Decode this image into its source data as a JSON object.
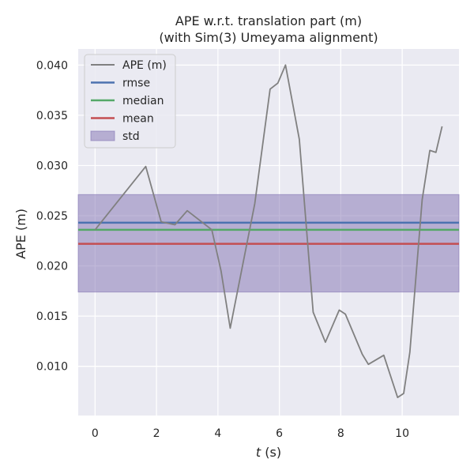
{
  "chart_data": {
    "type": "line",
    "title": "APE w.r.t. translation part (m)",
    "subtitle": "(with Sim(3) Umeyama alignment)",
    "xlabel_italic": "t",
    "xlabel_unit": " (s)",
    "ylabel": "APE (m)",
    "xlim": [
      -0.55,
      11.85
    ],
    "ylim": [
      0.0051,
      0.0416
    ],
    "xticks": [
      0,
      2,
      4,
      6,
      8,
      10
    ],
    "yticks": [
      0.01,
      0.015,
      0.02,
      0.025,
      0.03,
      0.035,
      0.04
    ],
    "ytick_labels": [
      "0.010",
      "0.015",
      "0.020",
      "0.025",
      "0.030",
      "0.035",
      "0.040"
    ],
    "grid": true,
    "legend_position": "top-left",
    "series": [
      {
        "name": "APE (m)",
        "color": "#808080",
        "x": [
          0.0,
          1.65,
          2.15,
          2.6,
          3.0,
          3.8,
          4.1,
          4.4,
          5.2,
          5.7,
          5.95,
          6.2,
          6.65,
          7.1,
          7.5,
          7.95,
          8.15,
          8.7,
          8.9,
          9.4,
          9.85,
          10.05,
          10.25,
          10.65,
          10.9,
          11.1,
          11.3
        ],
        "y": [
          0.0236,
          0.0299,
          0.0244,
          0.0241,
          0.0255,
          0.0236,
          0.0195,
          0.0138,
          0.0262,
          0.0376,
          0.0382,
          0.04,
          0.0326,
          0.0154,
          0.0124,
          0.0156,
          0.0152,
          0.0112,
          0.0102,
          0.0111,
          0.0069,
          0.0073,
          0.0114,
          0.0266,
          0.0315,
          0.0313,
          0.0339
        ]
      }
    ],
    "stats": [
      {
        "name": "rmse",
        "value": 0.0243,
        "color": "#4c72b0"
      },
      {
        "name": "median",
        "value": 0.0236,
        "color": "#55a868"
      },
      {
        "name": "mean",
        "value": 0.0222,
        "color": "#c44e52"
      }
    ],
    "std_band": {
      "name": "std",
      "lower": 0.0174,
      "upper": 0.0271,
      "color": "#8172b2"
    },
    "colors": {
      "background": "#eaeaf2",
      "grid": "#ffffff",
      "text": "#262626"
    }
  }
}
